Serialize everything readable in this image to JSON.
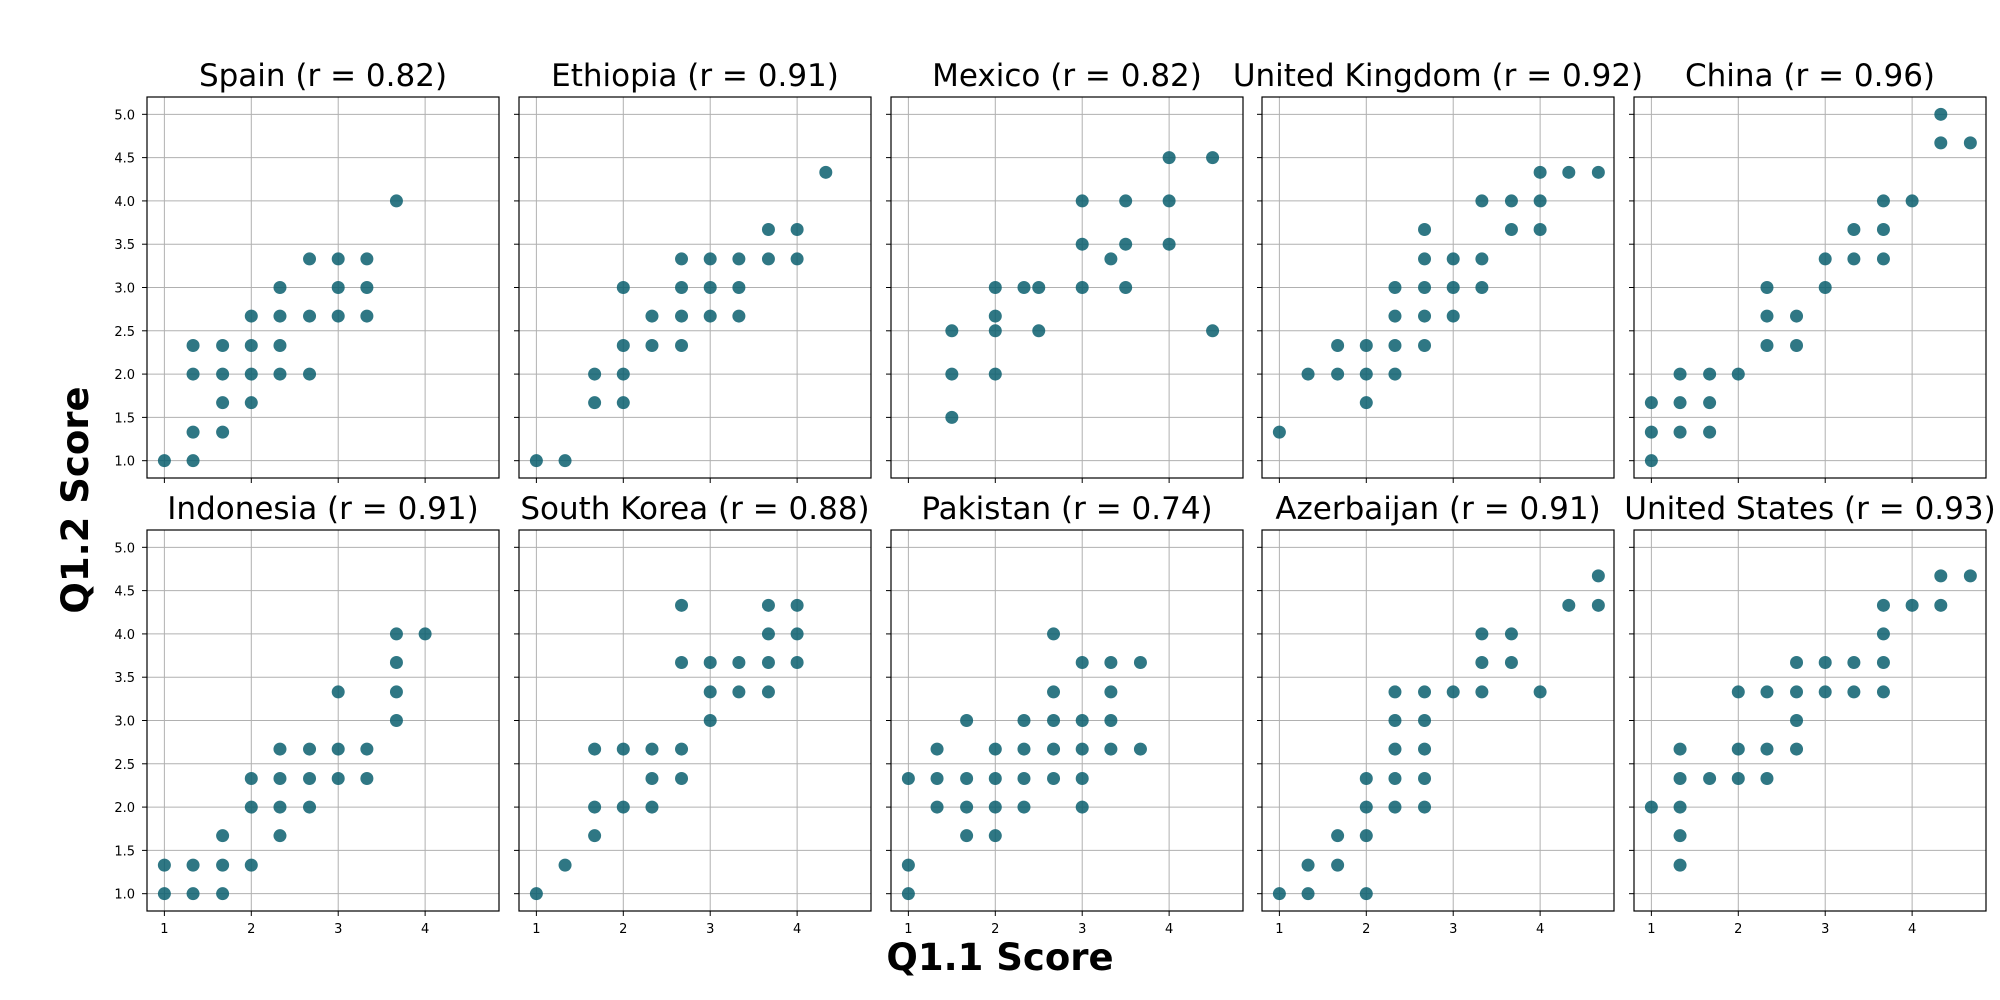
{
  "chart_data": {
    "type": "scatter",
    "xlabel": "Q1.1 Score",
    "ylabel": "Q1.2 Score",
    "xlim": [
      0.8,
      4.85
    ],
    "ylim": [
      0.8,
      5.2
    ],
    "xticks": [
      1,
      2,
      3,
      4
    ],
    "yticks": [
      1.0,
      1.5,
      2.0,
      2.5,
      3.0,
      3.5,
      4.0,
      4.5,
      5.0
    ],
    "grid": true,
    "marker_color": "#0b5f6e",
    "panels": [
      {
        "title": "Spain (r = 0.82)",
        "points": [
          [
            1,
            1
          ],
          [
            1.33,
            1
          ],
          [
            1.33,
            1.33
          ],
          [
            1.33,
            2
          ],
          [
            1.33,
            2.33
          ],
          [
            1.67,
            1.33
          ],
          [
            1.67,
            1.67
          ],
          [
            1.67,
            2
          ],
          [
            1.67,
            2.33
          ],
          [
            2,
            1.67
          ],
          [
            2,
            2
          ],
          [
            2,
            2.33
          ],
          [
            2,
            2.67
          ],
          [
            2.33,
            2
          ],
          [
            2.33,
            2.33
          ],
          [
            2.33,
            2.67
          ],
          [
            2.33,
            3
          ],
          [
            2.67,
            2
          ],
          [
            2.67,
            2.67
          ],
          [
            2.67,
            3.33
          ],
          [
            3,
            2.67
          ],
          [
            3,
            3
          ],
          [
            3,
            3.33
          ],
          [
            3.33,
            2.67
          ],
          [
            3.33,
            3
          ],
          [
            3.33,
            3.33
          ],
          [
            3.67,
            4
          ]
        ]
      },
      {
        "title": "Ethiopia (r = 0.91)",
        "points": [
          [
            1,
            1
          ],
          [
            1.33,
            1
          ],
          [
            1.67,
            1.67
          ],
          [
            1.67,
            2
          ],
          [
            2,
            1.67
          ],
          [
            2,
            2
          ],
          [
            2,
            2.33
          ],
          [
            2,
            3
          ],
          [
            2.33,
            2.33
          ],
          [
            2.33,
            2.67
          ],
          [
            2.67,
            2.33
          ],
          [
            2.67,
            2.67
          ],
          [
            2.67,
            3
          ],
          [
            2.67,
            3.33
          ],
          [
            3,
            2.67
          ],
          [
            3,
            3
          ],
          [
            3,
            3.33
          ],
          [
            3.33,
            2.67
          ],
          [
            3.33,
            3
          ],
          [
            3.33,
            3.33
          ],
          [
            3.67,
            3.33
          ],
          [
            3.67,
            3.67
          ],
          [
            4,
            3.33
          ],
          [
            4,
            3.67
          ],
          [
            4.33,
            4.33
          ]
        ]
      },
      {
        "title": "Mexico (r = 0.82)",
        "points": [
          [
            1.5,
            1.5
          ],
          [
            1.5,
            2
          ],
          [
            1.5,
            2.5
          ],
          [
            2,
            2
          ],
          [
            2,
            2.5
          ],
          [
            2,
            2.67
          ],
          [
            2,
            3
          ],
          [
            2.33,
            3
          ],
          [
            2.5,
            2.5
          ],
          [
            2.5,
            3
          ],
          [
            3,
            3
          ],
          [
            3,
            3.5
          ],
          [
            3,
            4
          ],
          [
            3.33,
            3.33
          ],
          [
            3.5,
            3
          ],
          [
            3.5,
            3.5
          ],
          [
            3.5,
            4
          ],
          [
            4,
            3.5
          ],
          [
            4,
            4
          ],
          [
            4,
            4.5
          ],
          [
            4.5,
            2.5
          ],
          [
            4.5,
            4.5
          ]
        ]
      },
      {
        "title": "United Kingdom (r = 0.92)",
        "points": [
          [
            1,
            1.33
          ],
          [
            1.33,
            2
          ],
          [
            1.67,
            2
          ],
          [
            1.67,
            2.33
          ],
          [
            2,
            1.67
          ],
          [
            2,
            2
          ],
          [
            2,
            2.33
          ],
          [
            2.33,
            2
          ],
          [
            2.33,
            2.33
          ],
          [
            2.33,
            2.67
          ],
          [
            2.33,
            3
          ],
          [
            2.67,
            2.33
          ],
          [
            2.67,
            2.67
          ],
          [
            2.67,
            3
          ],
          [
            2.67,
            3.33
          ],
          [
            2.67,
            3.67
          ],
          [
            3,
            2.67
          ],
          [
            3,
            3
          ],
          [
            3,
            3.33
          ],
          [
            3.33,
            3
          ],
          [
            3.33,
            3.33
          ],
          [
            3.33,
            4
          ],
          [
            3.67,
            3.67
          ],
          [
            3.67,
            4
          ],
          [
            4,
            3.67
          ],
          [
            4,
            4
          ],
          [
            4,
            4.33
          ],
          [
            4.33,
            4.33
          ],
          [
            4.67,
            4.33
          ]
        ]
      },
      {
        "title": "China (r = 0.96)",
        "points": [
          [
            1,
            1
          ],
          [
            1,
            1.33
          ],
          [
            1,
            1.67
          ],
          [
            1.33,
            1.33
          ],
          [
            1.33,
            1.67
          ],
          [
            1.33,
            2
          ],
          [
            1.67,
            1.33
          ],
          [
            1.67,
            1.67
          ],
          [
            1.67,
            2
          ],
          [
            2,
            2
          ],
          [
            2.33,
            2.33
          ],
          [
            2.33,
            2.67
          ],
          [
            2.33,
            3
          ],
          [
            2.67,
            2.33
          ],
          [
            2.67,
            2.67
          ],
          [
            3,
            3
          ],
          [
            3,
            3.33
          ],
          [
            3.33,
            3.33
          ],
          [
            3.33,
            3.67
          ],
          [
            3.67,
            3.33
          ],
          [
            3.67,
            3.67
          ],
          [
            3.67,
            4
          ],
          [
            4,
            4
          ],
          [
            4.33,
            4.67
          ],
          [
            4.33,
            5
          ],
          [
            4.67,
            4.67
          ]
        ]
      },
      {
        "title": "Indonesia (r = 0.91)",
        "points": [
          [
            1,
            1
          ],
          [
            1,
            1.33
          ],
          [
            1.33,
            1
          ],
          [
            1.33,
            1.33
          ],
          [
            1.67,
            1
          ],
          [
            1.67,
            1.33
          ],
          [
            1.67,
            1.67
          ],
          [
            2,
            1.33
          ],
          [
            2,
            2
          ],
          [
            2,
            2.33
          ],
          [
            2.33,
            1.67
          ],
          [
            2.33,
            2
          ],
          [
            2.33,
            2.33
          ],
          [
            2.33,
            2.67
          ],
          [
            2.67,
            2
          ],
          [
            2.67,
            2.33
          ],
          [
            2.67,
            2.67
          ],
          [
            3,
            2.33
          ],
          [
            3,
            2.67
          ],
          [
            3,
            3.33
          ],
          [
            3.33,
            2.33
          ],
          [
            3.33,
            2.67
          ],
          [
            3.67,
            3
          ],
          [
            3.67,
            3.33
          ],
          [
            3.67,
            3.67
          ],
          [
            3.67,
            4
          ],
          [
            4,
            4
          ]
        ]
      },
      {
        "title": "South Korea (r = 0.88)",
        "points": [
          [
            1,
            1
          ],
          [
            1.33,
            1.33
          ],
          [
            1.67,
            1.67
          ],
          [
            1.67,
            2
          ],
          [
            1.67,
            2.67
          ],
          [
            2,
            2
          ],
          [
            2,
            2.67
          ],
          [
            2.33,
            2
          ],
          [
            2.33,
            2.33
          ],
          [
            2.33,
            2.67
          ],
          [
            2.67,
            2.33
          ],
          [
            2.67,
            2.67
          ],
          [
            2.67,
            3.67
          ],
          [
            2.67,
            4.33
          ],
          [
            3,
            3
          ],
          [
            3,
            3.33
          ],
          [
            3,
            3.67
          ],
          [
            3.33,
            3.33
          ],
          [
            3.33,
            3.67
          ],
          [
            3.67,
            3.33
          ],
          [
            3.67,
            3.67
          ],
          [
            3.67,
            4
          ],
          [
            3.67,
            4.33
          ],
          [
            4,
            3.67
          ],
          [
            4,
            4
          ],
          [
            4,
            4.33
          ]
        ]
      },
      {
        "title": "Pakistan (r = 0.74)",
        "points": [
          [
            1,
            1
          ],
          [
            1,
            1.33
          ],
          [
            1,
            2.33
          ],
          [
            1.33,
            2
          ],
          [
            1.33,
            2.33
          ],
          [
            1.33,
            2.67
          ],
          [
            1.67,
            1.67
          ],
          [
            1.67,
            2
          ],
          [
            1.67,
            2.33
          ],
          [
            1.67,
            3
          ],
          [
            2,
            1.67
          ],
          [
            2,
            2
          ],
          [
            2,
            2.33
          ],
          [
            2,
            2.67
          ],
          [
            2.33,
            2
          ],
          [
            2.33,
            2.33
          ],
          [
            2.33,
            2.67
          ],
          [
            2.33,
            3
          ],
          [
            2.67,
            2.33
          ],
          [
            2.67,
            2.67
          ],
          [
            2.67,
            3
          ],
          [
            2.67,
            3.33
          ],
          [
            2.67,
            4
          ],
          [
            3,
            2
          ],
          [
            3,
            2.33
          ],
          [
            3,
            2.67
          ],
          [
            3,
            3
          ],
          [
            3,
            3.67
          ],
          [
            3.33,
            2.67
          ],
          [
            3.33,
            3
          ],
          [
            3.33,
            3.33
          ],
          [
            3.33,
            3.67
          ],
          [
            3.67,
            2.67
          ],
          [
            3.67,
            3.67
          ]
        ]
      },
      {
        "title": "Azerbaijan (r = 0.91)",
        "points": [
          [
            1,
            1
          ],
          [
            1.33,
            1
          ],
          [
            1.33,
            1.33
          ],
          [
            1.67,
            1.33
          ],
          [
            1.67,
            1.67
          ],
          [
            2,
            1
          ],
          [
            2,
            1.67
          ],
          [
            2,
            2
          ],
          [
            2,
            2.33
          ],
          [
            2.33,
            2
          ],
          [
            2.33,
            2.33
          ],
          [
            2.33,
            2.67
          ],
          [
            2.33,
            3
          ],
          [
            2.33,
            3.33
          ],
          [
            2.67,
            2
          ],
          [
            2.67,
            2.33
          ],
          [
            2.67,
            2.67
          ],
          [
            2.67,
            3
          ],
          [
            2.67,
            3.33
          ],
          [
            3,
            3.33
          ],
          [
            3.33,
            3.33
          ],
          [
            3.33,
            3.67
          ],
          [
            3.33,
            4
          ],
          [
            3.67,
            3.67
          ],
          [
            3.67,
            4
          ],
          [
            4,
            3.33
          ],
          [
            4.33,
            4.33
          ],
          [
            4.67,
            4.33
          ],
          [
            4.67,
            4.67
          ]
        ]
      },
      {
        "title": "United States (r = 0.93)",
        "points": [
          [
            1,
            2
          ],
          [
            1.33,
            1.33
          ],
          [
            1.33,
            1.67
          ],
          [
            1.33,
            2
          ],
          [
            1.33,
            2.33
          ],
          [
            1.33,
            2.67
          ],
          [
            1.67,
            2.33
          ],
          [
            2,
            2.33
          ],
          [
            2,
            2.67
          ],
          [
            2,
            3.33
          ],
          [
            2.33,
            2.33
          ],
          [
            2.33,
            2.67
          ],
          [
            2.33,
            3.33
          ],
          [
            2.67,
            2.67
          ],
          [
            2.67,
            3
          ],
          [
            2.67,
            3.33
          ],
          [
            2.67,
            3.67
          ],
          [
            3,
            3.33
          ],
          [
            3,
            3.67
          ],
          [
            3.33,
            3.33
          ],
          [
            3.33,
            3.67
          ],
          [
            3.67,
            3.33
          ],
          [
            3.67,
            3.67
          ],
          [
            3.67,
            4
          ],
          [
            3.67,
            4.33
          ],
          [
            4,
            4.33
          ],
          [
            4.33,
            4.33
          ],
          [
            4.33,
            4.67
          ],
          [
            4.67,
            4.67
          ]
        ]
      }
    ]
  }
}
